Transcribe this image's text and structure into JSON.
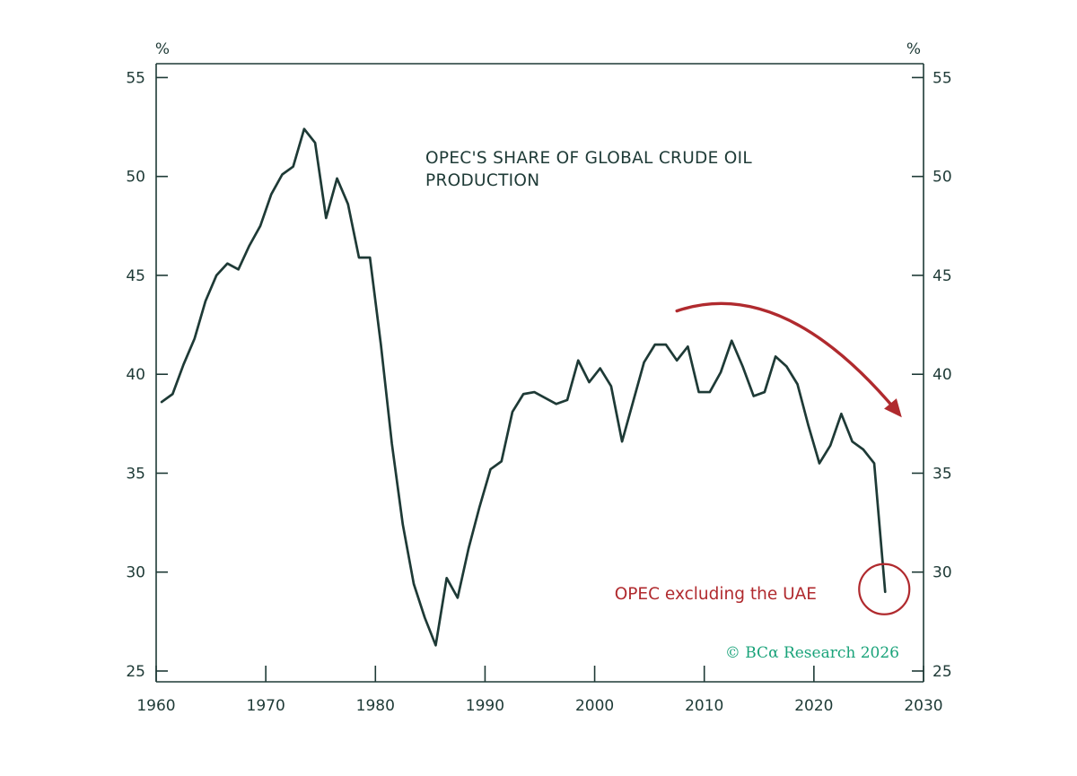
{
  "colors": {
    "line": "#1e3a36",
    "axis": "#1e3a36",
    "accent": "#b02a2e",
    "brand": "#1aa37a"
  },
  "chart_data": {
    "type": "line",
    "title": "OPEC'S SHARE OF GLOBAL CRUDE OIL PRODUCTION",
    "title_lines": [
      "OPEC'S SHARE OF GLOBAL CRUDE OIL",
      "PRODUCTION"
    ],
    "xlabel": "",
    "ylabel_left": "%",
    "ylabel_right": "%",
    "xlim": [
      1960,
      2030
    ],
    "ylim": [
      24.5,
      55.7
    ],
    "x_ticks": [
      1960,
      1970,
      1980,
      1990,
      2000,
      2010,
      2020,
      2030
    ],
    "x_tick_labels": [
      "1960",
      "1970",
      "1980",
      "1990",
      "2000",
      "2010",
      "2020",
      "2030"
    ],
    "y_ticks": [
      25,
      30,
      35,
      40,
      45,
      50,
      55
    ],
    "y_tick_labels": [
      "25",
      "30",
      "35",
      "40",
      "45",
      "50",
      "55"
    ],
    "grid": false,
    "series": [
      {
        "x": [
          1960.5,
          1961.5,
          1962.5,
          1963.5,
          1964.5,
          1965.5,
          1966.5,
          1967.5,
          1968.5,
          1969.5,
          1970.5,
          1971.5,
          1972.5,
          1973.5,
          1974.5,
          1975.5,
          1976.5,
          1977.5,
          1978.5,
          1979.5,
          1980.5,
          1981.5,
          1982.5,
          1983.5,
          1984.5,
          1985.5,
          1986.5,
          1987.5,
          1988.5,
          1989.5,
          1990.5,
          1991.5,
          1992.5,
          1993.5,
          1994.5,
          1995.5,
          1996.5,
          1997.5,
          1998.5,
          1999.5,
          2000.5,
          2001.5,
          2002.5,
          2003.5,
          2004.5,
          2005.5,
          2006.5,
          2007.5,
          2008.5,
          2009.5,
          2010.5,
          2011.5,
          2012.5,
          2013.5,
          2014.5,
          2015.5,
          2016.5,
          2017.5,
          2018.5,
          2019.5,
          2020.5,
          2021.5,
          2022.5,
          2023.5,
          2024.5,
          2025.5,
          2026.5
        ],
        "values": [
          38.6,
          39.0,
          40.5,
          41.8,
          43.7,
          45.0,
          45.6,
          45.3,
          46.5,
          47.5,
          49.1,
          50.1,
          50.5,
          52.4,
          51.7,
          47.9,
          49.9,
          48.6,
          45.9,
          45.9,
          41.5,
          36.5,
          32.4,
          29.4,
          27.7,
          26.3,
          29.7,
          28.7,
          31.2,
          33.3,
          35.2,
          35.6,
          38.1,
          39.0,
          39.1,
          38.8,
          38.5,
          38.7,
          40.7,
          39.6,
          40.3,
          39.4,
          36.6,
          38.6,
          40.6,
          41.5,
          41.5,
          40.7,
          41.4,
          39.1,
          39.1,
          40.1,
          41.7,
          40.4,
          38.9,
          39.1,
          40.9,
          40.4,
          39.5,
          37.4,
          35.5,
          36.4,
          38.0,
          36.6,
          36.2,
          35.5,
          29.0
        ]
      }
    ],
    "annotations": [
      {
        "text": "OPEC excluding the UAE",
        "type": "circle",
        "x": 2026.5,
        "y": 29.0
      },
      {
        "type": "arrow",
        "from": [
          2007.5,
          43.2
        ],
        "to": [
          2027.6,
          38.1
        ]
      }
    ]
  },
  "credit": {
    "text": "© BCα Research 2026"
  }
}
